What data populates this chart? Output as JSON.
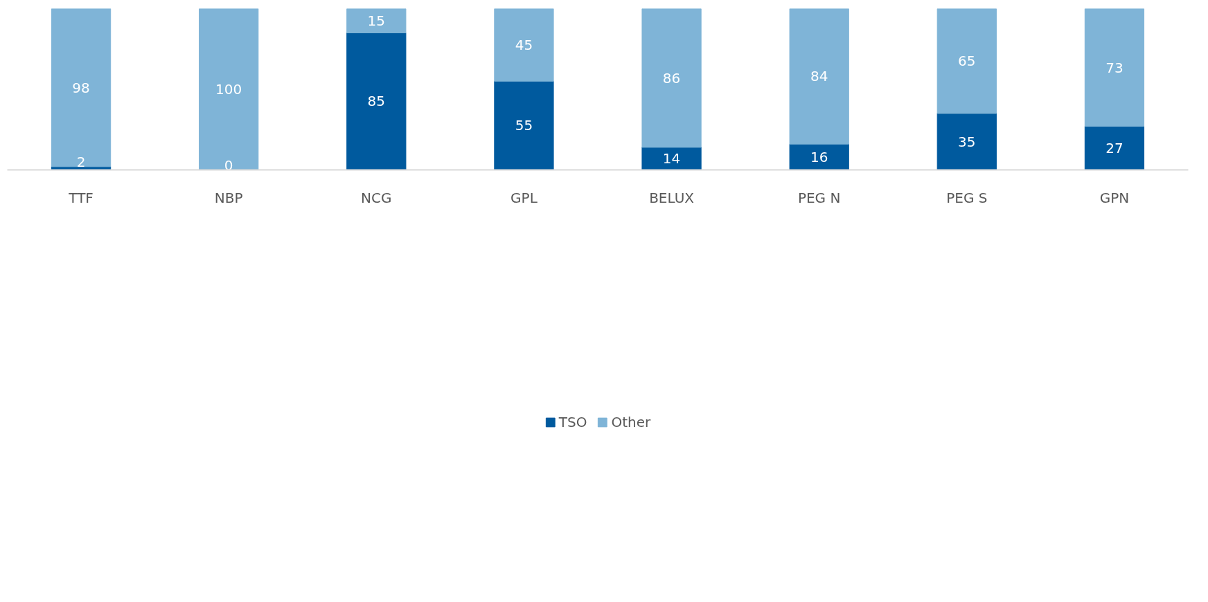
{
  "chart_data": {
    "type": "bar",
    "stacked": true,
    "categories": [
      "TTF",
      "NBP",
      "NCG",
      "GPL",
      "BELUX",
      "PEG N",
      "PEG S",
      "GPN"
    ],
    "series": [
      {
        "name": "TSO",
        "color": "#005a9e",
        "values": [
          2,
          0,
          85,
          55,
          14,
          16,
          35,
          27
        ]
      },
      {
        "name": "Other",
        "color": "#7fb4d7",
        "values": [
          98,
          100,
          15,
          45,
          86,
          84,
          65,
          73
        ]
      }
    ],
    "ylim": [
      0,
      100
    ],
    "tick_labels": "x",
    "data_labels": true,
    "legend": "bottom",
    "grid": false
  }
}
